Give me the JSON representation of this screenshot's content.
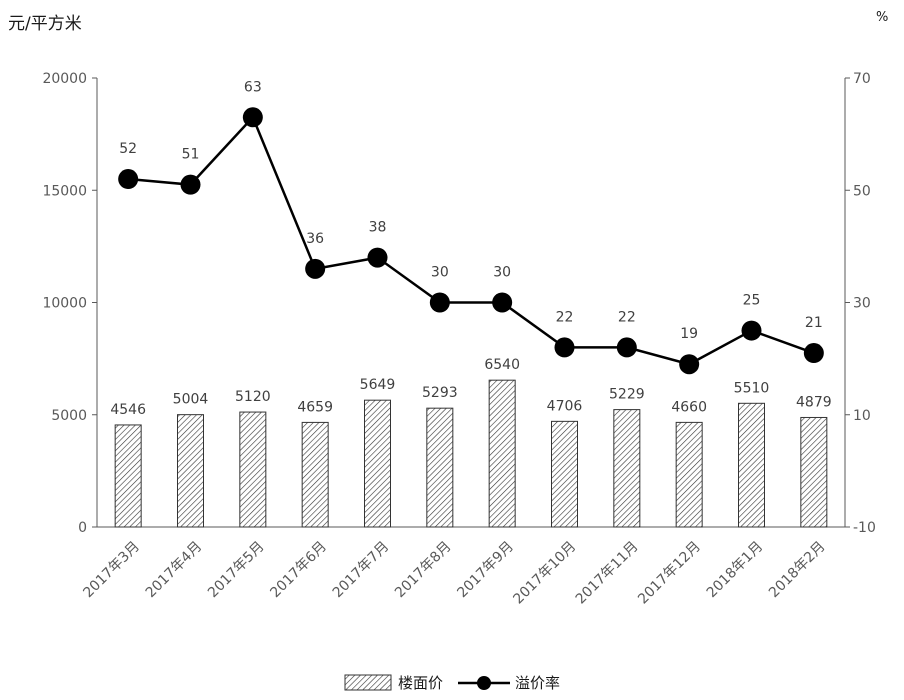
{
  "chart_data": {
    "type": "bar+line",
    "left_axis_title": "元/平方米",
    "right_axis_title": "%",
    "categories": [
      "2017年3月",
      "2017年4月",
      "2017年5月",
      "2017年6月",
      "2017年7月",
      "2017年8月",
      "2017年9月",
      "2017年10月",
      "2017年11月",
      "2017年12月",
      "2018年1月",
      "2018年2月"
    ],
    "series": [
      {
        "name": "楼面价",
        "type": "bar",
        "axis": "left",
        "values": [
          4546,
          5004,
          5120,
          4659,
          5649,
          5293,
          6540,
          4706,
          5229,
          4660,
          5510,
          4879
        ]
      },
      {
        "name": "溢价率",
        "type": "line",
        "axis": "right",
        "values": [
          52,
          51,
          63,
          36,
          38,
          30,
          30,
          22,
          22,
          19,
          25,
          21
        ]
      }
    ],
    "left_ticks": [
      0,
      5000,
      10000,
      15000,
      20000
    ],
    "right_ticks": [
      -10,
      10,
      30,
      50,
      70
    ],
    "left_ylim": [
      0,
      20000
    ],
    "right_ylim": [
      -10,
      70
    ],
    "grid": false,
    "legend": "bottom",
    "colors": {
      "bar_hatch": "#333333",
      "line": "#000000",
      "axis": "#595959"
    }
  }
}
